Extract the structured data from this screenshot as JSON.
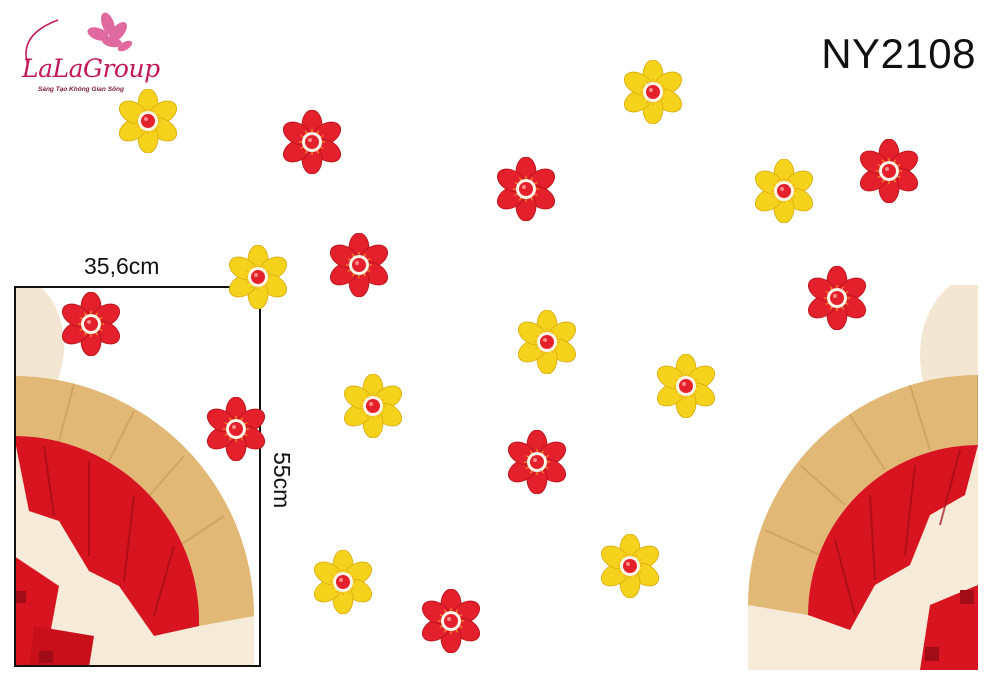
{
  "brand": {
    "name": "LaLaGroup",
    "tagline": "Sáng Tạo Không Gian Sống",
    "color": "#c2185b"
  },
  "product_code": "NY2108",
  "dimensions": {
    "width_label": "35,6cm",
    "height_label": "55cm"
  },
  "colors": {
    "red_flower": "#e3202b",
    "yellow_flower": "#f5d31c",
    "fan_red": "#d7141f",
    "fan_gold": "#e7c58a",
    "cream": "#f6ead8"
  }
}
